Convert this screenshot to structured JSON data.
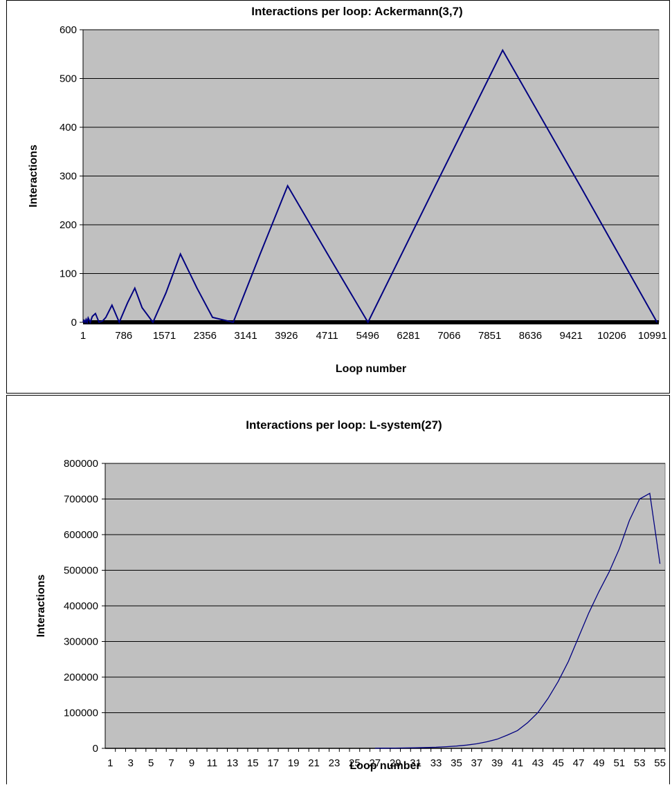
{
  "chart_data": [
    {
      "type": "line",
      "title": "Interactions per loop: Ackermann(3,7)",
      "xlabel": "Loop number",
      "ylabel": "Interactions",
      "ylim": [
        0,
        600
      ],
      "yticks": [
        0,
        100,
        200,
        300,
        400,
        500,
        600
      ],
      "xlim": [
        1,
        11115
      ],
      "xticks": [
        1,
        786,
        1571,
        2356,
        3141,
        3926,
        4711,
        5496,
        6281,
        7066,
        7851,
        8636,
        9421,
        10206,
        10991
      ],
      "grid": true,
      "legend": "none",
      "plot_background": "#c0c0c0",
      "series_color": "#000080",
      "series": [
        {
          "x": [
            1,
            20,
            40,
            60,
            80,
            100,
            140,
            180,
            240,
            310,
            380,
            440,
            560,
            700,
            860,
            1000,
            1140,
            1350,
            1600,
            1880,
            2200,
            2500,
            2900,
            3420,
            3950,
            4720,
            5500,
            6800,
            8100,
            9600,
            11080
          ],
          "y": [
            0,
            4,
            0,
            6,
            0,
            9,
            0,
            12,
            18,
            0,
            3,
            10,
            35,
            0,
            40,
            70,
            30,
            0,
            60,
            140,
            70,
            10,
            0,
            140,
            280,
            140,
            0,
            280,
            558,
            279,
            0
          ]
        }
      ]
    },
    {
      "type": "line",
      "title": "Interactions per loop: L-system(27)",
      "xlabel": "Loop number",
      "ylabel": "Interactions",
      "ylim": [
        0,
        800000
      ],
      "yticks": [
        0,
        100000,
        200000,
        300000,
        400000,
        500000,
        600000,
        700000,
        800000
      ],
      "categories": [
        1,
        2,
        3,
        4,
        5,
        6,
        7,
        8,
        9,
        10,
        11,
        12,
        13,
        14,
        15,
        16,
        17,
        18,
        19,
        20,
        21,
        22,
        23,
        24,
        25,
        26,
        27,
        28,
        29,
        30,
        31,
        32,
        33,
        34,
        35,
        36,
        37,
        38,
        39,
        40,
        41,
        42,
        43,
        44,
        45,
        46,
        47,
        48,
        49,
        50,
        51,
        52,
        53,
        54,
        55
      ],
      "xtick_labels": [
        1,
        3,
        5,
        7,
        9,
        11,
        13,
        15,
        17,
        19,
        21,
        23,
        25,
        27,
        29,
        31,
        33,
        35,
        37,
        39,
        41,
        43,
        45,
        47,
        49,
        51,
        53,
        55
      ],
      "grid": true,
      "legend": "none",
      "plot_background": "#c0c0c0",
      "series_color": "#000080",
      "series": [
        {
          "values": [
            null,
            null,
            null,
            null,
            null,
            null,
            null,
            null,
            null,
            null,
            null,
            null,
            null,
            null,
            null,
            null,
            null,
            null,
            null,
            null,
            null,
            null,
            null,
            null,
            null,
            null,
            400,
            600,
            800,
            1200,
            1600,
            2300,
            3200,
            4600,
            6400,
            9200,
            12800,
            18400,
            25600,
            37000,
            50000,
            72000,
            100000,
            140000,
            188000,
            244000,
            312000,
            380000,
            440000,
            495000,
            560000,
            640000,
            700000,
            716000,
            518000
          ]
        }
      ]
    }
  ]
}
